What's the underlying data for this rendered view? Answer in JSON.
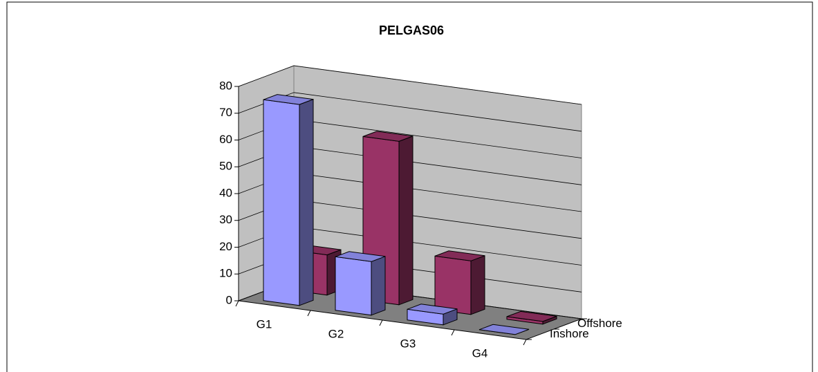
{
  "chart_data": {
    "type": "bar3d",
    "title": "PELGAS06",
    "categories": [
      "G1",
      "G2",
      "G3",
      "G4"
    ],
    "series": [
      {
        "name": "Inshore",
        "color": "#9999ff",
        "values": [
          75,
          20,
          4,
          0
        ]
      },
      {
        "name": "Offshore",
        "color": "#993366",
        "values": [
          15,
          61,
          20,
          1
        ]
      }
    ],
    "ylim": [
      0,
      80
    ],
    "yticks": [
      0,
      10,
      20,
      30,
      40,
      50,
      60,
      70,
      80
    ],
    "grid": true
  }
}
